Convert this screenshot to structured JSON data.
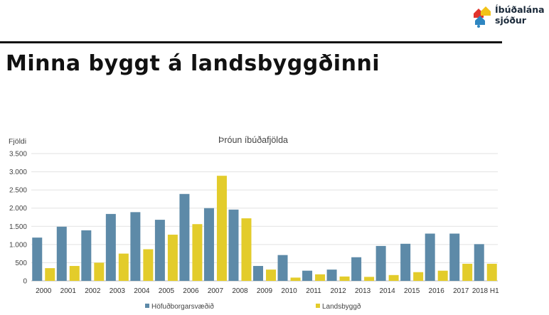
{
  "header": {
    "title": "Minna byggt á landsbyggðinni",
    "logo_line1": "Íbúðalána",
    "logo_line2": "sjóður"
  },
  "colors": {
    "series1": "#5d8aa8",
    "series2": "#e3cc2b",
    "logo_red": "#e0342d",
    "logo_blue": "#2e86c1",
    "logo_yellow": "#f2c318"
  },
  "chart_data": {
    "type": "bar",
    "title": "Þróun íbúðafjölda",
    "ylabel": "Fjöldi",
    "xlabel": "",
    "ylim": [
      0,
      3500
    ],
    "yticks": [
      0,
      500,
      1000,
      1500,
      2000,
      2500,
      3000,
      3500
    ],
    "ytick_labels": [
      "0",
      "500",
      "1.000",
      "1.500",
      "2.000",
      "2.500",
      "3.000",
      "3.500"
    ],
    "grid": true,
    "legend_position": "bottom",
    "categories": [
      "2000",
      "2001",
      "2002",
      "2003",
      "2004",
      "2005",
      "2006",
      "2007",
      "2008",
      "2009",
      "2010",
      "2011",
      "2012",
      "2013",
      "2014",
      "2015",
      "2016",
      "2017",
      "2018 H1"
    ],
    "series": [
      {
        "name": "Höfuðborgarsvæðið",
        "values": [
          1190,
          1490,
          1390,
          1840,
          1890,
          1680,
          2390,
          2000,
          1960,
          410,
          710,
          280,
          310,
          650,
          960,
          1020,
          1300,
          1300,
          1010
        ]
      },
      {
        "name": "Landsbyggð",
        "values": [
          350,
          410,
          500,
          750,
          870,
          1270,
          1560,
          2890,
          1720,
          310,
          90,
          180,
          120,
          110,
          160,
          240,
          280,
          470,
          470
        ]
      }
    ]
  }
}
